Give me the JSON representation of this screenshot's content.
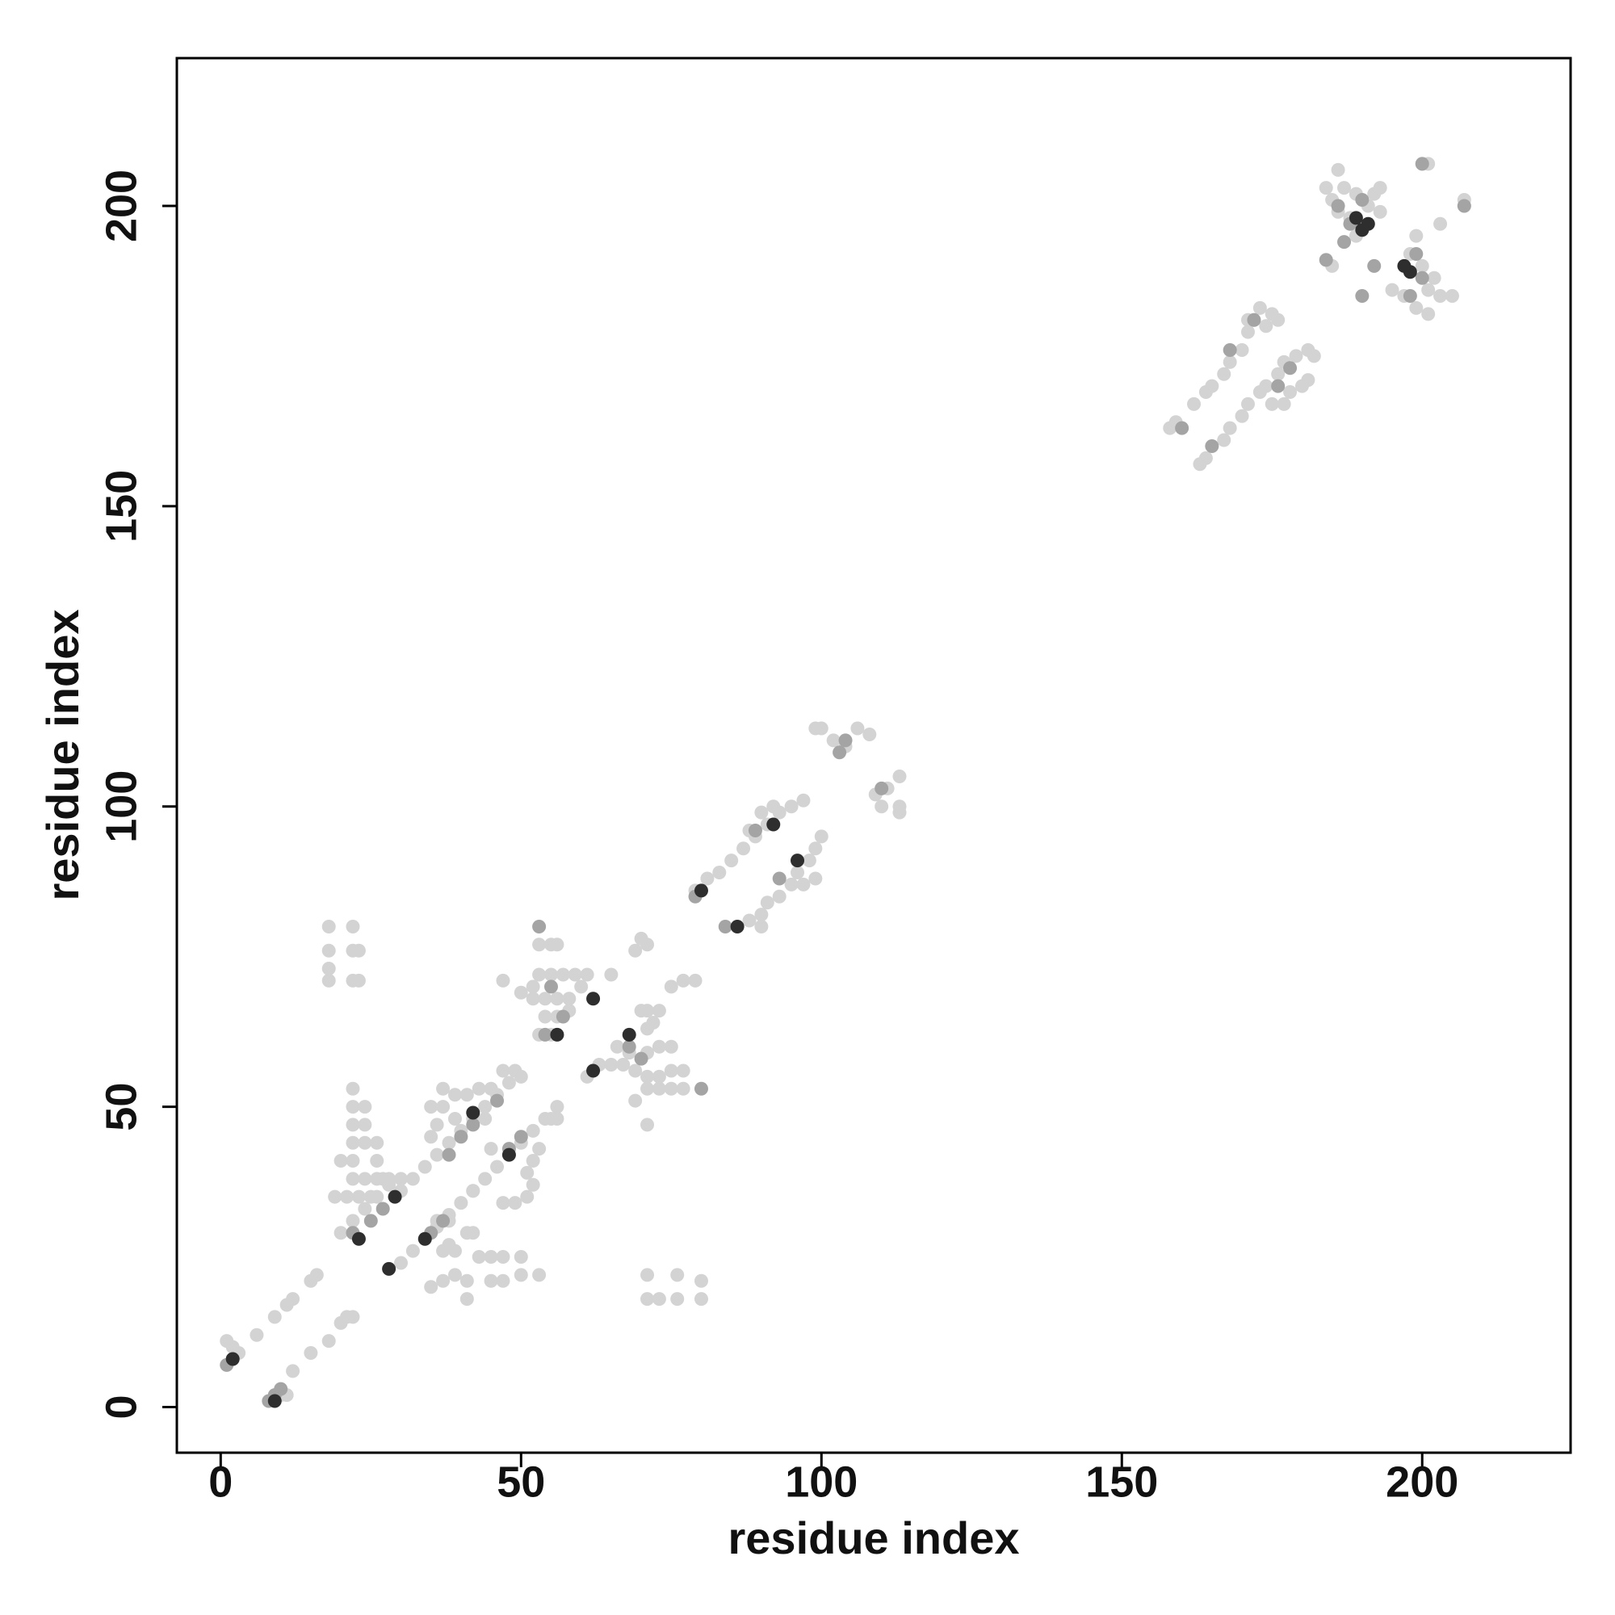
{
  "chart_data": {
    "type": "scatter",
    "xlabel": "residue index",
    "ylabel": "residue index",
    "xlim": [
      -7.3,
      224.7
    ],
    "ylim": [
      -7.6,
      224.6
    ],
    "xticks": [
      0,
      50,
      100,
      150,
      200
    ],
    "yticks": [
      0,
      50,
      100,
      150,
      200
    ],
    "grid": false,
    "series": [
      {
        "color": "#d3d3d3",
        "x": [
          6,
          9,
          11,
          12,
          15,
          16,
          21,
          22,
          18,
          20,
          15,
          12,
          1,
          2,
          3,
          10,
          11,
          18,
          22,
          18,
          22,
          23,
          18,
          18,
          22,
          23,
          20,
          22,
          22,
          22,
          22,
          22,
          24,
          24,
          24,
          26,
          26,
          22,
          24,
          26,
          28,
          30,
          19,
          21,
          23,
          25,
          27,
          20,
          22,
          24,
          26,
          28,
          30,
          32,
          34,
          36,
          38,
          40,
          42,
          44,
          46,
          48,
          50,
          35,
          35,
          37,
          37,
          39,
          41,
          43,
          45,
          47,
          49,
          36,
          39,
          44,
          30,
          32,
          34,
          36,
          38,
          40,
          42,
          44,
          46,
          48,
          50,
          52,
          54,
          56,
          55,
          56,
          35,
          37,
          39,
          41,
          41,
          43,
          45,
          47,
          45,
          47,
          50,
          50,
          53,
          37,
          39,
          41,
          42,
          47,
          49,
          51,
          52,
          51,
          52,
          53,
          45,
          42,
          38,
          36,
          38,
          53,
          55,
          56,
          47,
          50,
          52,
          53,
          55,
          57,
          59,
          61,
          52,
          54,
          56,
          58,
          60,
          54,
          56,
          58,
          53,
          55,
          65,
          69,
          70,
          71,
          75,
          77,
          79,
          70,
          71,
          73,
          61,
          63,
          65,
          67,
          69,
          71,
          73,
          75,
          77,
          75,
          77,
          69,
          71,
          73,
          71,
          73,
          75,
          71,
          72,
          71,
          66,
          68,
          71,
          71,
          73,
          76,
          76,
          80,
          80,
          79,
          81,
          83,
          85,
          87,
          89,
          91,
          93,
          95,
          97,
          88,
          90,
          92,
          88,
          90,
          91,
          93,
          95,
          96,
          98,
          99,
          100,
          97,
          99,
          90,
          99,
          100,
          102,
          104,
          106,
          108,
          109,
          111,
          113,
          113,
          113,
          110,
          158,
          159,
          162,
          164,
          165,
          167,
          168,
          170,
          171,
          172,
          173,
          175,
          176,
          171,
          174,
          163,
          164,
          167,
          168,
          170,
          171,
          173,
          174,
          176,
          177,
          179,
          181,
          182,
          180,
          181,
          178,
          175,
          177,
          184,
          186,
          185,
          187,
          189,
          191,
          193,
          192,
          186,
          188,
          189,
          185,
          195,
          200,
          201,
          193,
          203,
          197,
          199,
          201,
          203,
          205,
          200,
          202,
          198,
          199,
          201,
          207,
          207
        ],
        "values": [
          12,
          15,
          17,
          18,
          21,
          22,
          15,
          15,
          11,
          14,
          9,
          6,
          11,
          10,
          9,
          2,
          2,
          80,
          80,
          76,
          76,
          76,
          73,
          71,
          71,
          71,
          41,
          41,
          53,
          50,
          47,
          44,
          50,
          47,
          44,
          44,
          41,
          38,
          38,
          38,
          38,
          38,
          35,
          35,
          35,
          35,
          38,
          29,
          31,
          33,
          35,
          37,
          36,
          38,
          40,
          42,
          44,
          46,
          48,
          50,
          52,
          54,
          55,
          45,
          50,
          50,
          53,
          52,
          52,
          53,
          53,
          56,
          56,
          47,
          48,
          48,
          24,
          26,
          28,
          30,
          32,
          34,
          36,
          38,
          40,
          42,
          44,
          46,
          48,
          50,
          48,
          48,
          20,
          21,
          22,
          18,
          21,
          25,
          21,
          21,
          25,
          25,
          25,
          22,
          22,
          26,
          26,
          29,
          29,
          34,
          34,
          35,
          37,
          39,
          41,
          43,
          43,
          36,
          31,
          31,
          27,
          77,
          77,
          77,
          71,
          69,
          70,
          72,
          72,
          72,
          72,
          72,
          68,
          68,
          68,
          68,
          70,
          65,
          65,
          66,
          62,
          62,
          72,
          76,
          78,
          77,
          70,
          71,
          71,
          66,
          66,
          66,
          55,
          57,
          57,
          57,
          56,
          55,
          55,
          56,
          56,
          53,
          53,
          51,
          53,
          53,
          59,
          60,
          60,
          63,
          64,
          47,
          60,
          59,
          22,
          18,
          18,
          22,
          18,
          21,
          18,
          86,
          88,
          89,
          91,
          93,
          95,
          97,
          99,
          100,
          101,
          96,
          99,
          100,
          81,
          82,
          84,
          85,
          87,
          89,
          91,
          93,
          95,
          87,
          88,
          80,
          113,
          113,
          111,
          110,
          113,
          112,
          102,
          103,
          105,
          100,
          99,
          100,
          163,
          164,
          167,
          169,
          170,
          172,
          174,
          176,
          179,
          181,
          183,
          182,
          181,
          181,
          180,
          157,
          158,
          161,
          163,
          165,
          167,
          169,
          170,
          172,
          174,
          175,
          176,
          175,
          170,
          171,
          169,
          167,
          167,
          203,
          206,
          201,
          203,
          202,
          200,
          199,
          202,
          199,
          198,
          195,
          190,
          186,
          207,
          207,
          203,
          197,
          185,
          183,
          182,
          185,
          185,
          190,
          188,
          192,
          195,
          186,
          200,
          201
        ]
      },
      {
        "color": "#a4a4a4",
        "x": [
          1,
          2,
          8,
          10,
          9,
          22,
          25,
          27,
          35,
          37,
          38,
          40,
          42,
          46,
          48,
          50,
          53,
          54,
          55,
          57,
          68,
          70,
          80,
          79,
          84,
          89,
          93,
          103,
          104,
          110,
          160,
          168,
          172,
          165,
          176,
          178,
          186,
          188,
          190,
          192,
          187,
          190,
          198,
          200,
          199,
          200,
          207,
          184
        ],
        "values": [
          7,
          8,
          1,
          3,
          2,
          29,
          31,
          33,
          29,
          31,
          42,
          45,
          47,
          51,
          43,
          45,
          80,
          62,
          70,
          65,
          60,
          58,
          53,
          85,
          80,
          96,
          88,
          109,
          111,
          103,
          163,
          176,
          181,
          160,
          170,
          173,
          200,
          197,
          201,
          190,
          194,
          185,
          185,
          188,
          192,
          207,
          200,
          191
        ]
      },
      {
        "color": "#2e2e2e",
        "x": [
          2,
          9,
          23,
          28,
          29,
          34,
          42,
          48,
          56,
          62,
          62,
          68,
          80,
          86,
          92,
          96,
          191,
          197,
          189,
          198,
          190
        ],
        "values": [
          8,
          1,
          28,
          23,
          35,
          28,
          49,
          42,
          62,
          56,
          68,
          62,
          86,
          80,
          97,
          91,
          197,
          190,
          198,
          189,
          196
        ]
      }
    ]
  }
}
